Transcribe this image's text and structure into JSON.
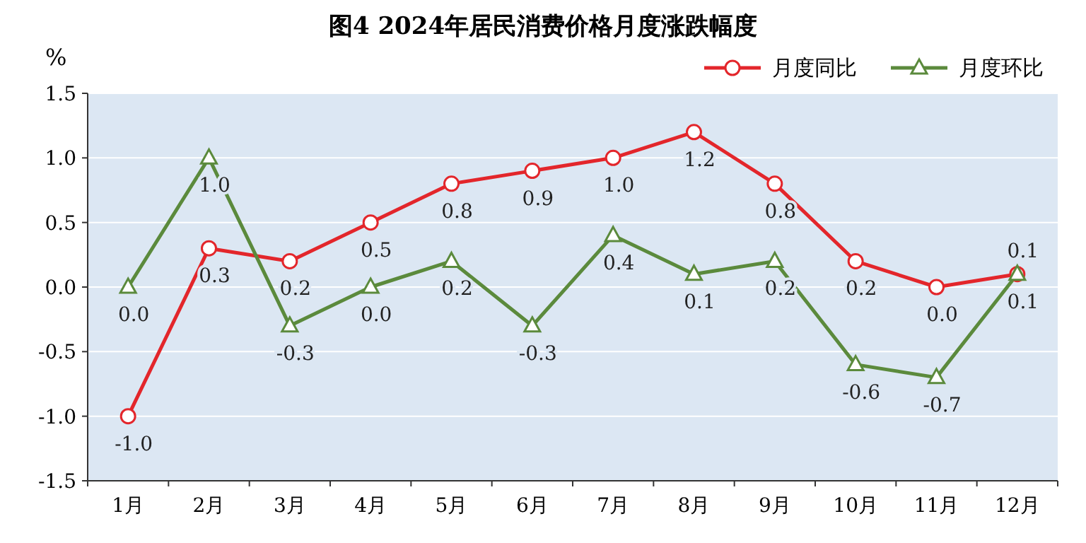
{
  "chart_data": {
    "type": "line",
    "title": "图4  2024年居民消费价格月度涨跌幅度",
    "ylabel": "%",
    "categories": [
      "1月",
      "2月",
      "3月",
      "4月",
      "5月",
      "6月",
      "7月",
      "8月",
      "9月",
      "10月",
      "11月",
      "12月"
    ],
    "series": [
      {
        "name": "月度同比",
        "color": "#e3262b",
        "marker": "circle",
        "values": [
          -1.0,
          0.3,
          0.2,
          0.5,
          0.8,
          0.9,
          1.0,
          1.2,
          0.8,
          0.2,
          0.0,
          0.1
        ],
        "value_labels": [
          "-1.0",
          "0.3",
          "0.2",
          "0.5",
          "0.8",
          "0.9",
          "1.0",
          "1.2",
          "0.8",
          "0.2",
          "0.0",
          "0.1"
        ]
      },
      {
        "name": "月度环比",
        "color": "#5b8a3c",
        "marker": "triangle",
        "values": [
          0.0,
          1.0,
          -0.3,
          0.0,
          0.2,
          -0.3,
          0.4,
          0.1,
          0.2,
          -0.6,
          -0.7,
          0.1
        ],
        "value_labels": [
          "0.0",
          "1.0",
          "-0.3",
          "0.0",
          "0.2",
          "-0.3",
          "0.4",
          "0.1",
          "0.2",
          "-0.6",
          "-0.7",
          "0.1"
        ]
      }
    ],
    "ylim": [
      -1.5,
      1.5
    ],
    "yticks": [
      -1.5,
      {
        "value": -1,
        "label": "-1.0"
      },
      -0.5,
      {
        "value": 0,
        "label": "0.0"
      },
      0.5,
      {
        "value": 1,
        "label": "1.0"
      },
      1.5
    ],
    "grid": "y",
    "legend": "top right",
    "line_style": "solid"
  }
}
